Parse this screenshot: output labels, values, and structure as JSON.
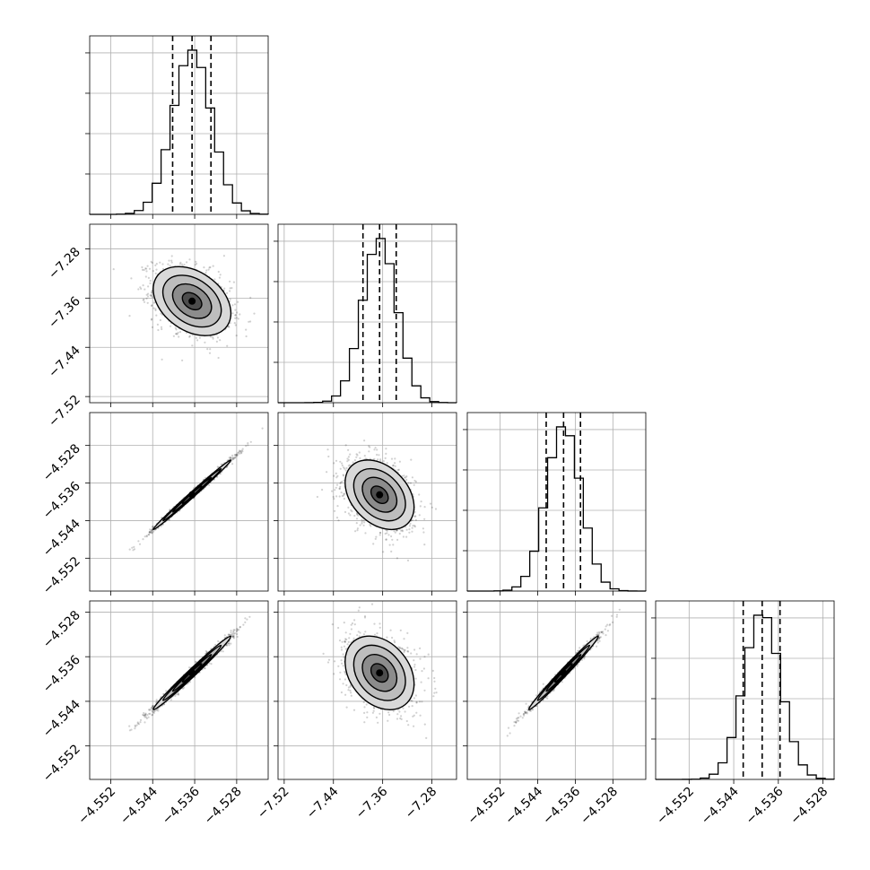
{
  "chart_data": {
    "type": "corner",
    "grid": true,
    "parameters": [
      {
        "index": 0,
        "range": [
          -4.556,
          -4.522
        ],
        "mean": -4.5365,
        "sigma": 0.0037,
        "quantiles": [
          -4.5402,
          -4.5365,
          -4.5329
        ],
        "ticks": [
          -4.552,
          -4.544,
          -4.536,
          -4.528
        ],
        "tick_labels": [
          "−4.552",
          "−4.544",
          "−4.536",
          "−4.528"
        ]
      },
      {
        "index": 1,
        "range": [
          -7.53,
          -7.24
        ],
        "mean": -7.365,
        "sigma": 0.028,
        "quantiles": [
          -7.392,
          -7.365,
          -7.338
        ],
        "ticks": [
          -7.52,
          -7.44,
          -7.36,
          -7.28
        ],
        "tick_labels": [
          "−7.52",
          "−7.44",
          "−7.36",
          "−7.28"
        ]
      },
      {
        "index": 2,
        "range": [
          -4.559,
          -4.521
        ],
        "mean": -4.5385,
        "sigma": 0.0037,
        "quantiles": [
          -4.5422,
          -4.5385,
          -4.5349
        ],
        "ticks": [
          -4.552,
          -4.544,
          -4.536,
          -4.528
        ],
        "tick_labels": [
          "−4.552",
          "−4.544",
          "−4.536",
          "−4.528"
        ]
      },
      {
        "index": 3,
        "range": [
          -4.558,
          -4.526
        ],
        "mean": -4.5389,
        "sigma": 0.0033,
        "quantiles": [
          -4.5423,
          -4.5389,
          -4.5357
        ],
        "ticks": [
          -4.552,
          -4.544,
          -4.536,
          -4.528
        ],
        "tick_labels": [
          "−4.552",
          "−4.544",
          "−4.536",
          "−4.528"
        ]
      }
    ],
    "correlations": [
      {
        "x": 0,
        "y": 1,
        "rho": -0.35
      },
      {
        "x": 0,
        "y": 2,
        "rho": 0.995
      },
      {
        "x": 1,
        "y": 2,
        "rho": -0.35
      },
      {
        "x": 0,
        "y": 3,
        "rho": 0.99
      },
      {
        "x": 1,
        "y": 3,
        "rho": -0.3
      },
      {
        "x": 2,
        "y": 3,
        "rho": 0.99
      }
    ],
    "contour_levels_sigma": [
      0.5,
      1.0,
      1.5,
      2.0
    ],
    "colors": {
      "points": "#000000",
      "line": "#000000",
      "grid": "#b0b0b0",
      "background": "#ffffff"
    }
  }
}
